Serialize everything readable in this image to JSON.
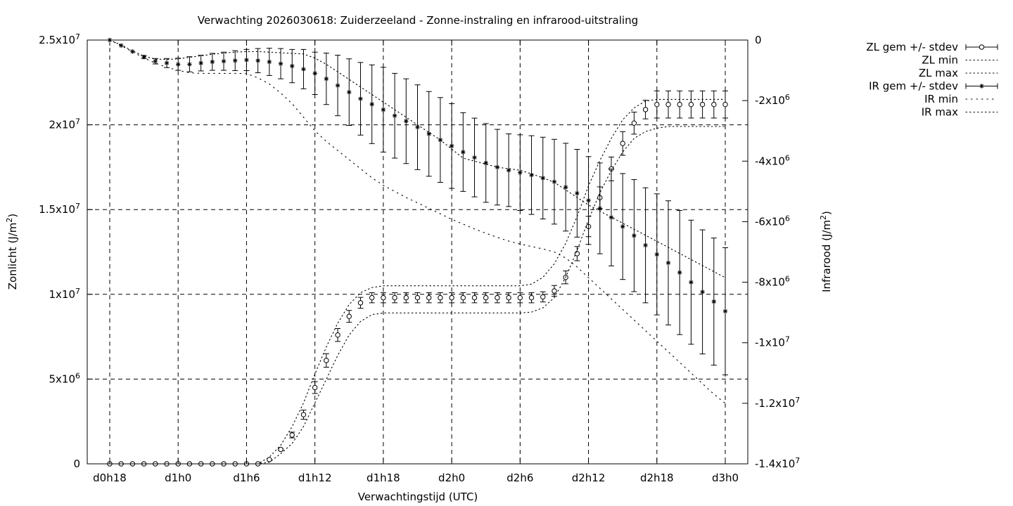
{
  "chart_data": {
    "type": "line",
    "title": "Verwachting 2026030618: Zuiderzeeland - Zonne-instraling en infrarood-uitstraling",
    "xlabel": "Verwachtingstijd (UTC)",
    "ylabel": "Zonlicht (J/m²)",
    "y2label": "Infrarood (J/m²)",
    "ylabel_base": "Zonlicht (J/m",
    "ylabel_end": ")",
    "y2label_base": "Infrarood (J/m",
    "y2label_end": ")",
    "label_sup": "2",
    "xlim": [
      0,
      1620
    ],
    "ylim": [
      0,
      25000000
    ],
    "y2lim": [
      -14000000,
      0
    ],
    "x_ticks": [
      {
        "value": 0,
        "label": "d0h18"
      },
      {
        "value": 180,
        "label": "d1h0"
      },
      {
        "value": 360,
        "label": "d1h6"
      },
      {
        "value": 540,
        "label": "d1h12"
      },
      {
        "value": 720,
        "label": "d1h18"
      },
      {
        "value": 900,
        "label": "d2h0"
      },
      {
        "value": 1080,
        "label": "d2h6"
      },
      {
        "value": 1260,
        "label": "d2h12"
      },
      {
        "value": 1440,
        "label": "d2h18"
      },
      {
        "value": 1620,
        "label": "d3h0"
      }
    ],
    "y_ticks": [
      {
        "value": 0,
        "base": "0",
        "exp": ""
      },
      {
        "value": 5000000,
        "base": "5x10",
        "exp": "6"
      },
      {
        "value": 10000000,
        "base": "1x10",
        "exp": "7"
      },
      {
        "value": 15000000,
        "base": "1.5x10",
        "exp": "7"
      },
      {
        "value": 20000000,
        "base": "2x10",
        "exp": "7"
      },
      {
        "value": 25000000,
        "base": "2.5x10",
        "exp": "7"
      }
    ],
    "y2_ticks": [
      {
        "value": 0,
        "base": "0",
        "exp": ""
      },
      {
        "value": -2000000,
        "base": "-2x10",
        "exp": "6"
      },
      {
        "value": -4000000,
        "base": "-4x10",
        "exp": "6"
      },
      {
        "value": -6000000,
        "base": "-6x10",
        "exp": "6"
      },
      {
        "value": -8000000,
        "base": "-8x10",
        "exp": "6"
      },
      {
        "value": -10000000,
        "base": "-1x10",
        "exp": "7"
      },
      {
        "value": -12000000,
        "base": "-1.2x10",
        "exp": "7"
      },
      {
        "value": -14000000,
        "base": "-1.4x10",
        "exp": "7"
      }
    ],
    "grid": true,
    "legend_position": "outside-top-right",
    "x": [
      0,
      30,
      60,
      90,
      120,
      150,
      180,
      210,
      240,
      270,
      300,
      330,
      360,
      390,
      420,
      450,
      480,
      510,
      540,
      570,
      600,
      630,
      660,
      690,
      720,
      750,
      780,
      810,
      840,
      870,
      900,
      930,
      960,
      990,
      1020,
      1050,
      1080,
      1110,
      1140,
      1170,
      1200,
      1230,
      1260,
      1290,
      1320,
      1350,
      1380,
      1410,
      1440,
      1470,
      1500,
      1530,
      1560,
      1590,
      1620
    ],
    "series": [
      {
        "name": "ZL gem +/- stdev",
        "axis": "left",
        "marker": "circle",
        "mean": [
          0,
          0,
          0,
          0,
          0,
          0,
          0,
          0,
          0,
          0,
          0,
          0,
          0,
          0,
          250000,
          850000,
          1700000,
          2900000,
          4500000,
          6100000,
          7600000,
          8700000,
          9500000,
          9800000,
          9800000,
          9800000,
          9800000,
          9800000,
          9800000,
          9800000,
          9800000,
          9800000,
          9800000,
          9800000,
          9800000,
          9800000,
          9800000,
          9800000,
          9850000,
          10200000,
          11000000,
          12400000,
          14000000,
          15700000,
          17400000,
          18900000,
          20100000,
          20900000,
          21200000,
          21200000,
          21200000,
          21200000,
          21200000,
          21200000,
          21200000
        ],
        "stdev": [
          0,
          0,
          0,
          0,
          0,
          0,
          0,
          0,
          0,
          0,
          0,
          0,
          0,
          0,
          0,
          60000,
          170000,
          270000,
          350000,
          400000,
          380000,
          350000,
          320000,
          300000,
          300000,
          300000,
          300000,
          300000,
          300000,
          300000,
          300000,
          300000,
          300000,
          300000,
          300000,
          300000,
          300000,
          300000,
          300000,
          320000,
          380000,
          420000,
          600000,
          640000,
          700000,
          700000,
          650000,
          550000,
          800000,
          800000,
          800000,
          800000,
          800000,
          800000,
          800000
        ]
      },
      {
        "name": "ZL min",
        "axis": "left",
        "style": "dotted",
        "values": [
          0,
          0,
          0,
          0,
          0,
          0,
          0,
          0,
          0,
          0,
          0,
          0,
          0,
          0,
          100000,
          600000,
          1200000,
          2200000,
          3600000,
          5000000,
          6400000,
          7600000,
          8400000,
          8800000,
          8900000,
          8900000,
          8900000,
          8900000,
          8900000,
          8900000,
          8900000,
          8900000,
          8900000,
          8900000,
          8900000,
          8900000,
          8900000,
          8950000,
          9200000,
          9800000,
          11000000,
          12600000,
          14400000,
          16000000,
          17300000,
          18400000,
          19200000,
          19600000,
          19800000,
          19900000,
          19900000,
          19900000,
          19900000,
          19900000,
          19900000
        ]
      },
      {
        "name": "ZL max",
        "axis": "left",
        "style": "dotted",
        "values": [
          0,
          0,
          0,
          0,
          0,
          0,
          0,
          0,
          0,
          0,
          0,
          0,
          0,
          0,
          400000,
          1100000,
          2200000,
          3600000,
          5300000,
          6900000,
          8300000,
          9400000,
          10100000,
          10400000,
          10500000,
          10500000,
          10500000,
          10500000,
          10500000,
          10500000,
          10500000,
          10500000,
          10500000,
          10500000,
          10500000,
          10500000,
          10500000,
          10600000,
          11000000,
          11800000,
          13000000,
          14600000,
          16400000,
          17900000,
          19200000,
          20300000,
          21000000,
          21400000,
          21500000,
          21500000,
          21500000,
          21500000,
          21500000,
          21500000,
          21500000
        ]
      },
      {
        "name": "IR gem +/- stdev",
        "axis": "right",
        "marker": "star",
        "mean": [
          0,
          -180000,
          -380000,
          -560000,
          -700000,
          -760000,
          -800000,
          -800000,
          -760000,
          -720000,
          -700000,
          -680000,
          -660000,
          -680000,
          -720000,
          -780000,
          -860000,
          -960000,
          -1100000,
          -1280000,
          -1500000,
          -1720000,
          -1940000,
          -2120000,
          -2300000,
          -2500000,
          -2680000,
          -2880000,
          -3100000,
          -3300000,
          -3500000,
          -3700000,
          -3880000,
          -4060000,
          -4200000,
          -4300000,
          -4380000,
          -4460000,
          -4560000,
          -4680000,
          -4860000,
          -5060000,
          -5300000,
          -5560000,
          -5860000,
          -6160000,
          -6460000,
          -6780000,
          -7080000,
          -7360000,
          -7680000,
          -8000000,
          -8320000,
          -8640000,
          -8960000
        ],
        "stdev": [
          0,
          0,
          0,
          50000,
          90000,
          150000,
          200000,
          250000,
          260000,
          280000,
          300000,
          330000,
          350000,
          400000,
          450000,
          500000,
          550000,
          650000,
          700000,
          850000,
          1000000,
          1100000,
          1200000,
          1300000,
          1400000,
          1400000,
          1400000,
          1400000,
          1400000,
          1400000,
          1400000,
          1300000,
          1300000,
          1300000,
          1250000,
          1200000,
          1250000,
          1300000,
          1350000,
          1400000,
          1450000,
          1450000,
          1450000,
          1500000,
          1600000,
          1750000,
          1850000,
          1900000,
          2000000,
          2050000,
          2050000,
          2050000,
          2050000,
          2100000,
          2100000
        ]
      },
      {
        "name": "IR min",
        "axis": "right",
        "style": "dotted",
        "values": [
          0,
          -180000,
          -390000,
          -590000,
          -760000,
          -900000,
          -1000000,
          -1080000,
          -1100000,
          -1100000,
          -1100000,
          -1100000,
          -1110000,
          -1250000,
          -1450000,
          -1750000,
          -2100000,
          -2550000,
          -3000000,
          -3350000,
          -3650000,
          -3950000,
          -4250000,
          -4550000,
          -4800000,
          -5000000,
          -5200000,
          -5380000,
          -5560000,
          -5740000,
          -5920000,
          -6080000,
          -6240000,
          -6380000,
          -6520000,
          -6640000,
          -6740000,
          -6820000,
          -6900000,
          -7000000,
          -7200000,
          -7500000,
          -7850000,
          -8200000,
          -8550000,
          -8900000,
          -9250000,
          -9600000,
          -9950000,
          -10300000,
          -10650000,
          -11000000,
          -11350000,
          -11700000,
          -12000000
        ]
      },
      {
        "name": "IR max",
        "axis": "right",
        "style": "dotted",
        "values": [
          0,
          -160000,
          -360000,
          -530000,
          -630000,
          -640000,
          -620000,
          -570000,
          -520000,
          -470000,
          -430000,
          -400000,
          -380000,
          -380000,
          -400000,
          -420000,
          -440000,
          -460000,
          -600000,
          -800000,
          -1050000,
          -1300000,
          -1550000,
          -1800000,
          -2050000,
          -2300000,
          -2550000,
          -2800000,
          -3050000,
          -3300000,
          -3600000,
          -3900000,
          -4000000,
          -4100000,
          -4200000,
          -4250000,
          -4300000,
          -4420000,
          -4550000,
          -4700000,
          -4950000,
          -5200000,
          -5450000,
          -5650000,
          -5850000,
          -6050000,
          -6250000,
          -6450000,
          -6650000,
          -6850000,
          -7050000,
          -7250000,
          -7450000,
          -7650000,
          -7850000
        ]
      }
    ]
  }
}
